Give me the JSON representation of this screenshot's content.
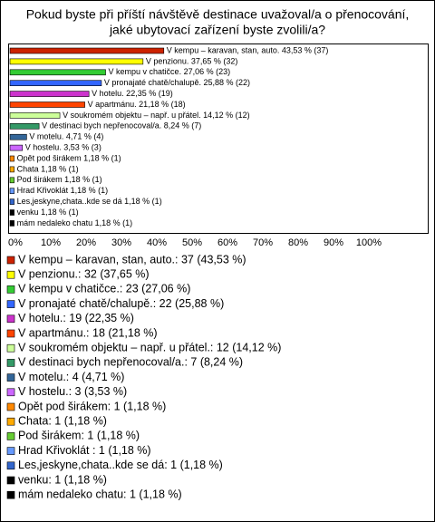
{
  "chart_data": {
    "type": "bar",
    "orientation": "horizontal",
    "title": "Pokud byste při příští návštěvě destinace uvažoval/a o přenocování,",
    "subtitle": "jaké ubytovací zařízení byste zvolili/a?",
    "values": [
      43.53,
      37.65,
      27.06,
      25.88,
      22.35,
      21.18,
      14.12,
      8.24,
      4.71,
      3.53,
      1.18,
      1.18,
      1.18,
      1.18,
      1.18,
      1.18,
      1.18
    ],
    "value_labels": [
      "V kempu – karavan, stan, auto. 43,53 % (37)",
      "V penzionu. 37,65 % (32)",
      "V kempu v chatičce. 27,06 % (23)",
      "V pronajaté chatě/chalupě. 25,88 % (22)",
      "V hotelu. 22,35 % (19)",
      "V apartmánu. 21,18 % (18)",
      "V soukromém objektu – např. u přátel. 14,12 % (12)",
      "V destinaci bych nepřenocoval/a. 8,24 % (7)",
      "V motelu. 4,71 % (4)",
      "V hostelu. 3,53 % (3)",
      "Opět pod širákem 1,18 % (1)",
      "Chata 1,18 % (1)",
      "Pod širákem 1,18 % (1)",
      "Hrad Křivoklát  1,18 % (1)",
      "Les,jeskyne,chata..kde se dá 1,18 % (1)",
      "venku 1,18 % (1)",
      "mám nedaleko chatu 1,18 % (1)"
    ],
    "legend": [
      "V kempu – karavan, stan, auto.: 37 (43,53 %)",
      "V penzionu.: 32 (37,65 %)",
      "V kempu v chatičce.: 23 (27,06 %)",
      "V pronajaté chatě/chalupě.: 22 (25,88 %)",
      "V hotelu.: 19 (22,35 %)",
      "V apartmánu.: 18 (21,18 %)",
      "V soukromém objektu – např. u přátel.: 12 (14,12 %)",
      "V destinaci bych nepřenocoval/a.: 7 (8,24 %)",
      "V motelu.: 4 (4,71 %)",
      "V hostelu.: 3 (3,53 %)",
      "Opět pod širákem: 1 (1,18 %)",
      "Chata: 1 (1,18 %)",
      "Pod širákem: 1 (1,18 %)",
      "Hrad Křivoklát : 1 (1,18 %)",
      "Les,jeskyne,chata..kde se dá: 1 (1,18 %)",
      "venku: 1 (1,18 %)",
      "mám nedaleko chatu: 1 (1,18 %)"
    ],
    "colors": [
      "#cc2200",
      "#ffff00",
      "#33cc33",
      "#3366ff",
      "#cc33cc",
      "#ff4400",
      "#ccff99",
      "#339966",
      "#336699",
      "#cc66ff",
      "#ff8800",
      "#ffaa00",
      "#66cc33",
      "#6699ff",
      "#3366cc",
      "#000000",
      "#000000"
    ],
    "xlim": [
      0,
      100
    ],
    "xticks": [
      {
        "value": 0,
        "label": "0%"
      },
      {
        "value": 10,
        "label": "10%"
      },
      {
        "value": 20,
        "label": "20%"
      },
      {
        "value": 30,
        "label": "30%"
      },
      {
        "value": 40,
        "label": "40%"
      },
      {
        "value": 50,
        "label": "50%"
      },
      {
        "value": 60,
        "label": "60%"
      },
      {
        "value": 70,
        "label": "70%"
      },
      {
        "value": 80,
        "label": "80%"
      },
      {
        "value": 90,
        "label": "90%"
      },
      {
        "value": 100,
        "label": "100%"
      }
    ]
  }
}
